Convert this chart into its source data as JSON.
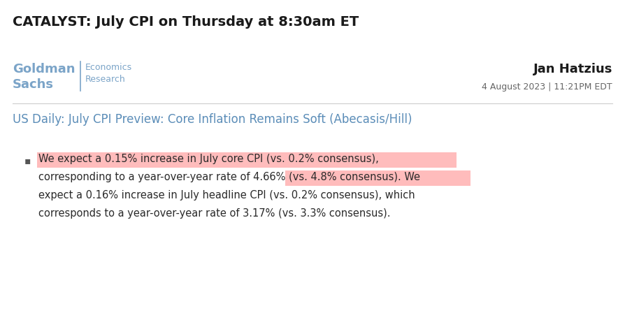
{
  "title": "CATALYST: July CPI on Thursday at 8:30am ET",
  "author": "Jan Hatzius",
  "date": "4 August 2023 | 11:21PM EDT",
  "report_title": "US Daily: July CPI Preview: Core Inflation Remains Soft (Abecasis/Hill)",
  "bullet_line1": "We expect a 0.15% increase in July core CPI (vs. 0.2% consensus),",
  "bullet_line2": "corresponding to a year-over-year rate of 4.66% (vs. 4.8% consensus). We",
  "bullet_line3": "expect a 0.16% increase in July headline CPI (vs. 0.2% consensus), which",
  "bullet_line4": "corresponds to a year-over-year rate of 3.17% (vs. 3.3% consensus).",
  "highlight_color": "#FFBCBC",
  "bg_color": "#FFFFFF",
  "title_color": "#1a1a1a",
  "gs_blue": "#7BA4C8",
  "gs_blue_dark": "#5B8DB8",
  "report_title_color": "#5B8DB8",
  "text_color": "#2a2a2a",
  "separator_color": "#CCCCCC",
  "bullet_color": "#555555",
  "title_fontsize": 14,
  "author_fontsize": 13,
  "date_fontsize": 9,
  "report_title_fontsize": 12,
  "body_fontsize": 10.5,
  "gs_name_fontsize": 13,
  "gs_sub_fontsize": 9
}
